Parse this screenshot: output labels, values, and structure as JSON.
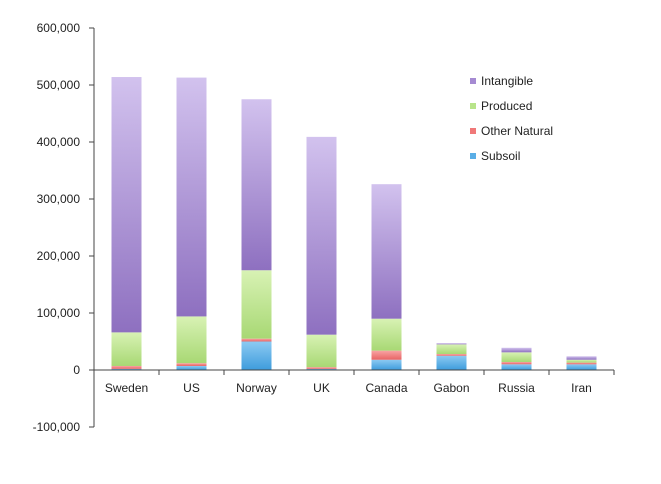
{
  "chart_data": {
    "type": "bar",
    "stacked": true,
    "categories": [
      "Sweden",
      "US",
      "Norway",
      "UK",
      "Canada",
      "Gabon",
      "Russia",
      "Iran"
    ],
    "series": [
      {
        "name": "Subsoil",
        "values": [
          2000,
          7000,
          50000,
          2000,
          18000,
          25000,
          10000,
          10000
        ]
      },
      {
        "name": "Other Natural",
        "values": [
          5000,
          5000,
          5000,
          3000,
          16000,
          3000,
          4000,
          3000
        ]
      },
      {
        "name": "Produced",
        "values": [
          59000,
          82000,
          120000,
          57000,
          56000,
          17000,
          17000,
          5000
        ]
      },
      {
        "name": "Intangible",
        "values": [
          448000,
          419000,
          300000,
          347000,
          236000,
          2000,
          8000,
          6000
        ]
      }
    ],
    "ylim": [
      -100000,
      600000
    ],
    "yticks": [
      "-100,000",
      "0",
      "100,000",
      "200,000",
      "300,000",
      "400,000",
      "500,000",
      "600,000"
    ],
    "legend_position": "right",
    "grid": false,
    "colors": {
      "Subsoil": "#5aaee6",
      "Other Natural": "#f07878",
      "Produced": "#b8e48a",
      "Intangible": "#a58ad2"
    }
  }
}
